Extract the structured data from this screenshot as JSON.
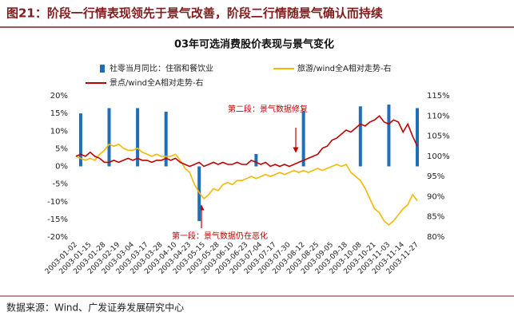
{
  "header": {
    "title": "图21：阶段一行情表现领先于景气改善，阶段二行情随景气确认而持续"
  },
  "footer": {
    "source": "数据来源：Wind、广发证券发展研究中心"
  },
  "chart_data": {
    "type": "bar-line",
    "title": "03年可选消费股价表现与景气变化",
    "annotations": [
      "第二段：景气数据修复",
      "第一段：景气数据仍在恶化"
    ],
    "categories": [
      "2003-01-02",
      null,
      null,
      "2003-01-15",
      null,
      null,
      "2003-01-28",
      null,
      null,
      "2003-02-19",
      null,
      null,
      "2003-03-04",
      null,
      null,
      "2003-03-17",
      null,
      null,
      "2003-03-28",
      null,
      null,
      "2003-04-10",
      null,
      null,
      "2003-04-23",
      null,
      null,
      "2003-05-15",
      null,
      null,
      "2003-05-28",
      null,
      null,
      "2003-06-10",
      null,
      null,
      "2003-06-23",
      null,
      null,
      "2003-07-04",
      null,
      null,
      "2003-07-17",
      null,
      null,
      "2003-07-30",
      null,
      null,
      "2003-08-12",
      null,
      null,
      "2003-08-25",
      null,
      null,
      "2003-09-05",
      null,
      null,
      "2003-09-18",
      null,
      null,
      "2003-10-08",
      null,
      null,
      "2003-10-21",
      null,
      null,
      "2003-11-03",
      null,
      null,
      "2003-11-14",
      null,
      null,
      "2003-11-27"
    ],
    "series": [
      {
        "name": "社零当月同比：住宿和餐饮业",
        "type": "bar",
        "color": "#1f6fb8",
        "values": [
          null,
          15,
          null,
          null,
          null,
          null,
          null,
          16.5,
          null,
          null,
          null,
          null,
          null,
          16.5,
          null,
          null,
          null,
          null,
          null,
          15.5,
          null,
          null,
          null,
          null,
          null,
          null,
          -15.5,
          null,
          null,
          null,
          null,
          null,
          null,
          null,
          null,
          null,
          null,
          null,
          3.5,
          null,
          null,
          null,
          null,
          null,
          null,
          null,
          null,
          null,
          15.5,
          null,
          null,
          null,
          null,
          null,
          null,
          null,
          null,
          null,
          null,
          null,
          17,
          null,
          null,
          null,
          null,
          null,
          17.5,
          null,
          null,
          null,
          null,
          null,
          16.5
        ]
      },
      {
        "name": "旅游/wind全A相对走势-右",
        "type": "line",
        "axis": "y2",
        "color": "#f5b800",
        "values": [
          100,
          99.5,
          99,
          99.5,
          99,
          100.5,
          101.5,
          103,
          102.5,
          103,
          102,
          101.5,
          101.5,
          102,
          101,
          100.5,
          100,
          100.5,
          100,
          100,
          100,
          100.5,
          99,
          97,
          96,
          93,
          91,
          89.5,
          90.5,
          92,
          91.5,
          93,
          93.5,
          93,
          94,
          94,
          94.5,
          95,
          94.5,
          95,
          95.5,
          95,
          95.5,
          96,
          95.5,
          96,
          96.5,
          96,
          96.5,
          96,
          96.5,
          97,
          96.5,
          97,
          97.5,
          98,
          97.5,
          98,
          96,
          95,
          94,
          92,
          89.5,
          87,
          86,
          84,
          83,
          84,
          85.5,
          87,
          88,
          90.5,
          89
        ]
      },
      {
        "name": "景点/wind全A相对走势-右",
        "type": "line",
        "axis": "y2",
        "color": "#c00000",
        "values": [
          100,
          100.5,
          100,
          101,
          100,
          99.5,
          98.5,
          98.5,
          99,
          98.5,
          99,
          99.5,
          99,
          99.5,
          99,
          99,
          98.5,
          99,
          99,
          99.5,
          99,
          99.5,
          98.5,
          98,
          97.5,
          98,
          98.5,
          97.5,
          98,
          98.5,
          98,
          98.5,
          98,
          98,
          98.5,
          98,
          98,
          99,
          98.5,
          98,
          98.5,
          97.5,
          98,
          97.5,
          98,
          97.5,
          98,
          98.5,
          99,
          99.5,
          100,
          100.5,
          102,
          102.5,
          104,
          104.5,
          105.5,
          106.5,
          106,
          107,
          108,
          107.5,
          108.5,
          109,
          110,
          108.5,
          108,
          109,
          108.5,
          106,
          108,
          105,
          102.5
        ]
      }
    ],
    "ylim": [
      -20,
      20
    ],
    "yticks": [
      {
        "value": -20,
        "label": "-20%"
      },
      {
        "value": -15,
        "label": "-15%"
      },
      {
        "value": -10,
        "label": "-10%"
      },
      {
        "value": -5,
        "label": "-5%"
      },
      {
        "value": 0,
        "label": "0%"
      },
      {
        "value": 5,
        "label": "5%"
      },
      {
        "value": 10,
        "label": "10%"
      },
      {
        "value": 15,
        "label": "15%"
      },
      {
        "value": 20,
        "label": "20%"
      }
    ],
    "y2lim": [
      80,
      115
    ],
    "y2ticks": [
      {
        "value": 80,
        "label": "80%"
      },
      {
        "value": 85,
        "label": "85%"
      },
      {
        "value": 90,
        "label": "90%"
      },
      {
        "value": 95,
        "label": "95%"
      },
      {
        "value": 100,
        "label": "100%"
      },
      {
        "value": 105,
        "label": "105%"
      },
      {
        "value": 110,
        "label": "110%"
      },
      {
        "value": 115,
        "label": "115%"
      }
    ]
  }
}
